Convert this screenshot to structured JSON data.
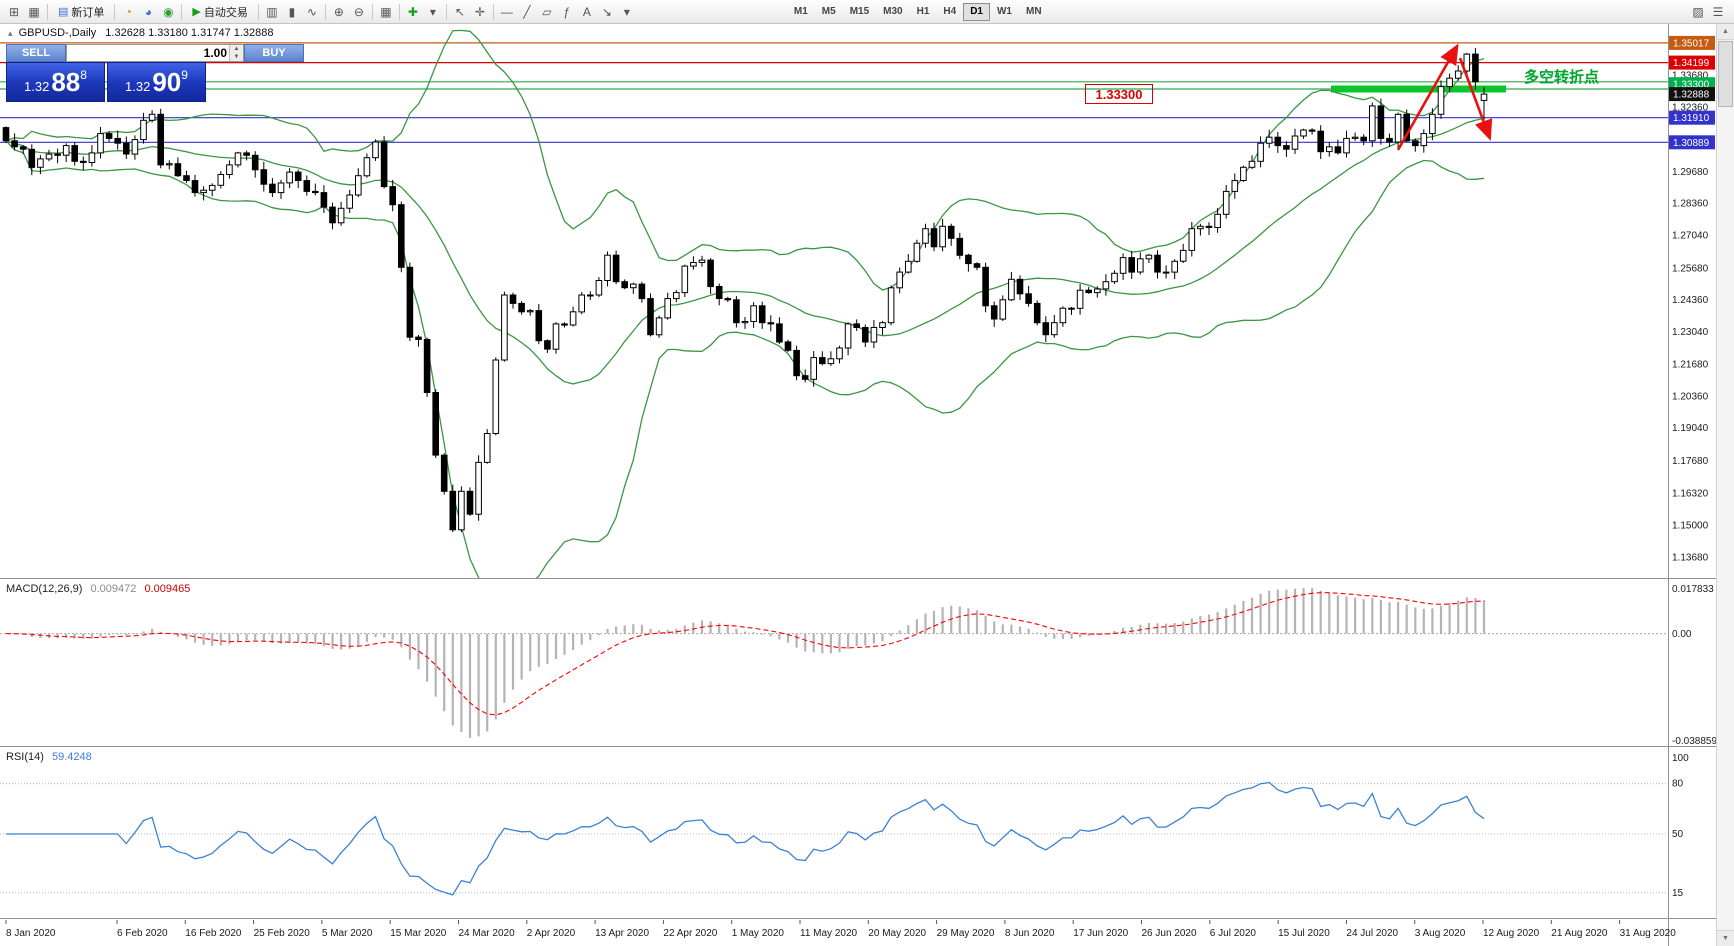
{
  "toolbar": {
    "groups": [
      [
        {
          "name": "new-chart-icon",
          "glyph": "⊞"
        },
        {
          "name": "chart-profiles-icon",
          "glyph": "▦"
        }
      ],
      [
        {
          "name": "new-order-button",
          "glyph": "▤",
          "glyph_color": "#3a6fd8",
          "label": "新订单"
        }
      ],
      [
        {
          "name": "history-center-icon",
          "glyph": "◔",
          "glyph_color": "#c8920a"
        },
        {
          "name": "market-news-icon",
          "glyph": "◕",
          "glyph_color": "#3a6fd8"
        },
        {
          "name": "community-icon",
          "glyph": "◉",
          "glyph_color": "#2aa02a"
        }
      ],
      [
        {
          "name": "autotrading-button",
          "glyph": "▶",
          "glyph_color": "#12a012",
          "label": "自动交易"
        }
      ],
      [
        {
          "name": "bars-chart-icon",
          "glyph": "▥"
        },
        {
          "name": "candles-chart-icon",
          "glyph": "▮"
        },
        {
          "name": "line-chart-icon",
          "glyph": "∿"
        }
      ],
      [
        {
          "name": "zoom-in-icon",
          "glyph": "⊕"
        },
        {
          "name": "zoom-out-icon",
          "glyph": "⊖"
        }
      ],
      [
        {
          "name": "tile-windows-icon",
          "glyph": "▦"
        }
      ],
      [
        {
          "name": "indicators-icon",
          "glyph": "✚",
          "glyph_color": "#18a018"
        },
        {
          "name": "indicators-dropdown-icon",
          "glyph": "▾"
        }
      ],
      [
        {
          "name": "cursor-icon",
          "glyph": "↖"
        },
        {
          "name": "crosshair-icon",
          "glyph": "✛"
        }
      ],
      [
        {
          "name": "hline-icon",
          "glyph": "—"
        },
        {
          "name": "trendline-icon",
          "glyph": "╱"
        },
        {
          "name": "channel-icon",
          "glyph": "▱"
        },
        {
          "name": "fibonacci-icon",
          "glyph": "ƒ"
        },
        {
          "name": "text-label-icon",
          "glyph": "A"
        },
        {
          "name": "arrow-object-icon",
          "glyph": "↘"
        },
        {
          "name": "objects-dropdown-icon",
          "glyph": "▾"
        }
      ]
    ],
    "timeframes": [
      {
        "label": "M1"
      },
      {
        "label": "M5"
      },
      {
        "label": "M15"
      },
      {
        "label": "M30"
      },
      {
        "label": "H1"
      },
      {
        "label": "H4"
      },
      {
        "label": "D1",
        "active": true
      },
      {
        "label": "W1"
      },
      {
        "label": "MN"
      }
    ],
    "right_icons": [
      {
        "name": "dock-panel-icon",
        "glyph": "▨"
      },
      {
        "name": "toolbar-menu-icon",
        "glyph": "☰"
      }
    ]
  },
  "chart": {
    "title_symbol": "GBPUSD-,Daily",
    "title_ohlc": "1.32628 1.33180 1.31747 1.32888",
    "price_scale": {
      "plain_ticks": [
        "1.33680",
        "1.32360",
        "1.29680",
        "1.28360",
        "1.27040",
        "1.25680",
        "1.24360",
        "1.23040",
        "1.21680",
        "1.20360",
        "1.19040",
        "1.17680",
        "1.16320",
        "1.15000",
        "1.13680"
      ],
      "tags": [
        {
          "label": "1.35017",
          "price": 1.35017,
          "color": "#c55a11"
        },
        {
          "label": "1.34199",
          "price": 1.34199,
          "color": "#dd0000"
        },
        {
          "label": "1.33300",
          "price": 1.333,
          "color": "#00b050"
        },
        {
          "label": "1.32888",
          "price": 1.32888,
          "color": "#111111"
        },
        {
          "label": "1.31910",
          "price": 1.3191,
          "color": "#3333cc"
        },
        {
          "label": "1.30889",
          "price": 1.30889,
          "color": "#3333cc"
        }
      ]
    },
    "hlines": [
      {
        "price": 1.35017,
        "color": "#c55a11"
      },
      {
        "price": 1.34199,
        "color": "#dd0000"
      },
      {
        "price": 1.334,
        "color": "#2fa84f"
      },
      {
        "price": 1.331,
        "color": "#2fa84f"
      },
      {
        "price": 1.3191,
        "color": "#3333cc"
      },
      {
        "price": 1.30889,
        "color": "#3333cc"
      }
    ],
    "annotations": {
      "price_label_text": "1.33300",
      "price_label_color": "#dd0000",
      "turning_point_text": "多空转折点",
      "turning_point_color": "#00a62f",
      "arrow_color": "#e81010",
      "support_zone": {
        "price": 1.331,
        "color": "#00cc22"
      }
    }
  },
  "one_click": {
    "sell_label": "SELL",
    "buy_label": "BUY",
    "lot_value": "1.00",
    "sell": {
      "int": "1.32",
      "big": "88",
      "sup": "8"
    },
    "buy": {
      "int": "1.32",
      "big": "90",
      "sup": "9"
    }
  },
  "chart_data": {
    "type": "candlestick",
    "symbol": "GBPUSD",
    "period": "Daily",
    "first_open": 1.315,
    "last_bar": {
      "open": 1.32628,
      "high": 1.3318,
      "low": 1.31747,
      "close": 1.32888
    },
    "y_axis": {
      "top": 1.358,
      "bottom": 1.128
    },
    "closes": [
      1.3095,
      1.307,
      1.306,
      1.2985,
      1.302,
      1.304,
      1.3035,
      1.3075,
      1.301,
      1.3005,
      1.3045,
      1.3125,
      1.3105,
      1.3085,
      1.304,
      1.31,
      1.318,
      1.3205,
      1.2995,
      1.3,
      1.295,
      1.293,
      1.288,
      1.289,
      1.291,
      1.2955,
      1.2995,
      1.3045,
      1.3035,
      1.2975,
      1.2915,
      1.288,
      1.292,
      1.2965,
      1.293,
      1.2885,
      1.288,
      1.282,
      1.2755,
      1.2815,
      1.287,
      1.295,
      1.3025,
      1.309,
      1.2905,
      1.283,
      1.257,
      1.228,
      1.227,
      1.205,
      1.179,
      1.164,
      1.148,
      1.164,
      1.1545,
      1.176,
      1.188,
      1.2185,
      1.2455,
      1.242,
      1.2385,
      1.239,
      1.2265,
      1.223,
      1.2335,
      1.233,
      1.2385,
      1.2455,
      1.2455,
      1.2515,
      1.262,
      1.251,
      1.2485,
      1.25,
      1.244,
      1.229,
      1.236,
      1.244,
      1.2465,
      1.2575,
      1.259,
      1.26,
      1.249,
      1.244,
      1.2435,
      1.234,
      1.2345,
      1.241,
      1.234,
      1.2335,
      1.226,
      1.2225,
      1.212,
      1.2105,
      1.2195,
      1.217,
      1.219,
      1.2235,
      1.2335,
      1.232,
      1.226,
      1.232,
      1.234,
      1.2485,
      1.255,
      1.2595,
      1.267,
      1.273,
      1.2655,
      1.274,
      1.269,
      1.262,
      1.2585,
      1.257,
      1.241,
      1.2355,
      1.2435,
      1.252,
      1.246,
      1.242,
      1.234,
      1.229,
      1.234,
      1.24,
      1.24,
      1.2475,
      1.2465,
      1.248,
      1.251,
      1.2545,
      1.261,
      1.255,
      1.2605,
      1.262,
      1.255,
      1.255,
      1.2595,
      1.264,
      1.273,
      1.274,
      1.2735,
      1.279,
      1.2885,
      1.293,
      1.2985,
      1.301,
      1.3085,
      1.311,
      1.3075,
      1.306,
      1.3115,
      1.314,
      1.3135,
      1.305,
      1.307,
      1.3045,
      1.3105,
      1.311,
      1.3095,
      1.324,
      1.3105,
      1.309,
      1.3205,
      1.3095,
      1.3075,
      1.3125,
      1.3205,
      1.332,
      1.3355,
      1.3385,
      1.3455,
      1.334,
      1.3289
    ],
    "x_labels": [
      "8 Jan 2020",
      "6 Feb 2020",
      "16 Feb 2020",
      "25 Feb 2020",
      "5 Mar 2020",
      "15 Mar 2020",
      "24 Mar 2020",
      "2 Apr 2020",
      "13 Apr 2020",
      "22 Apr 2020",
      "1 May 2020",
      "11 May 2020",
      "20 May 2020",
      "29 May 2020",
      "8 Jun 2020",
      "17 Jun 2020",
      "26 Jun 2020",
      "6 Jul 2020",
      "15 Jul 2020",
      "24 Jul 2020",
      "3 Aug 2020",
      "12 Aug 2020",
      "21 Aug 2020",
      "31 Aug 2020"
    ],
    "indicators": {
      "bollinger": {
        "period": 20,
        "deviation": 2,
        "color": "#3c9640"
      },
      "macd": {
        "label": "MACD(12,26,9)",
        "main_value": "0.009472",
        "signal_value": "0.009465",
        "axis_max": "0.017833",
        "axis_zero": "0.00",
        "axis_min": "-0.038859",
        "histogram_color": "#b4b4b4",
        "signal_color": "#ff0000"
      },
      "rsi": {
        "label": "RSI(14)",
        "value": "59.4248",
        "color": "#3b82d4",
        "axis_labels": [
          {
            "v": 100,
            "label": "100"
          },
          {
            "v": 80,
            "label": "80"
          },
          {
            "v": 50,
            "label": "50"
          },
          {
            "v": 15,
            "label": "15"
          }
        ],
        "levels": [
          80,
          50,
          15
        ]
      }
    }
  }
}
